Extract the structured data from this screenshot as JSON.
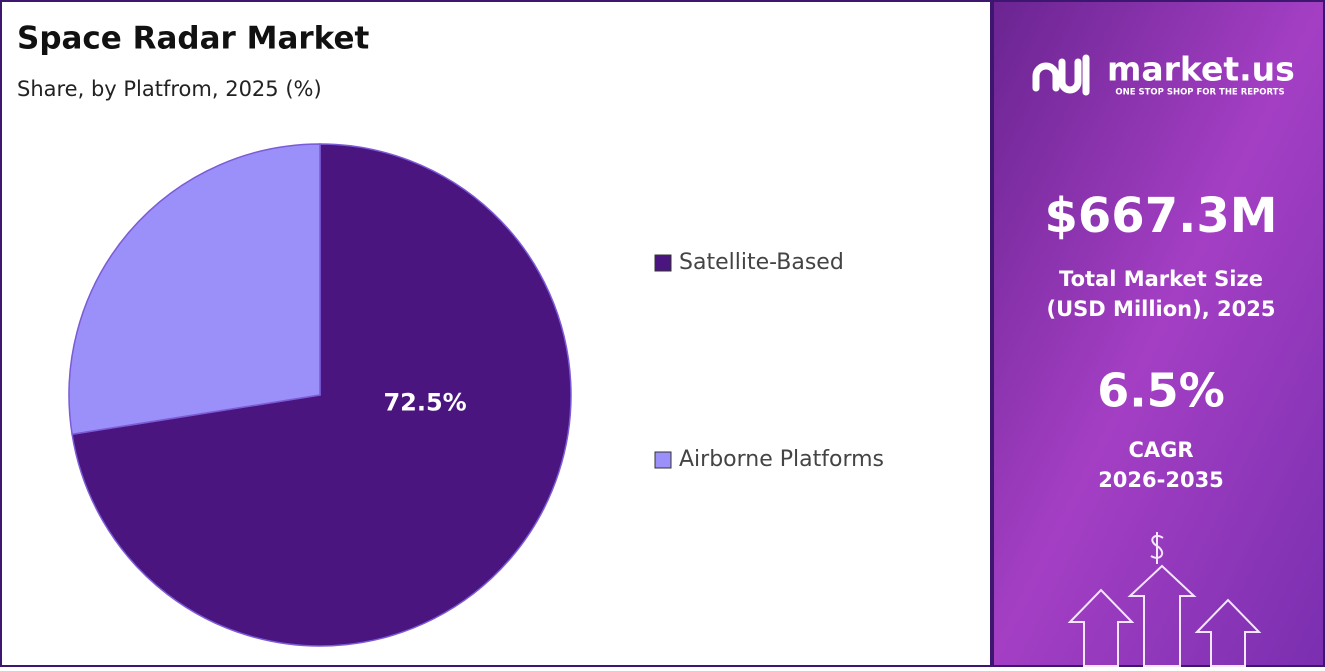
{
  "chart_data": {
    "type": "pie",
    "title": "Space Radar Market",
    "subtitle": "Share, by Platfrom, 2025 (%)",
    "categories": [
      "Satellite-Based",
      "Airborne Platforms"
    ],
    "values": [
      72.5,
      27.5
    ],
    "value_labels": [
      "72.5%",
      null
    ],
    "colors": [
      "#4b1580",
      "#9b8ff9"
    ],
    "legend": "right"
  },
  "side_panel": {
    "brand": "market.us",
    "tagline": "ONE STOP SHOP FOR THE REPORTS",
    "market_size": "$667.3M",
    "market_size_label": [
      "Total Market Size",
      "(USD Million), 2025"
    ],
    "cagr": "6.5%",
    "cagr_label": [
      "CAGR",
      "2026-2035"
    ]
  }
}
